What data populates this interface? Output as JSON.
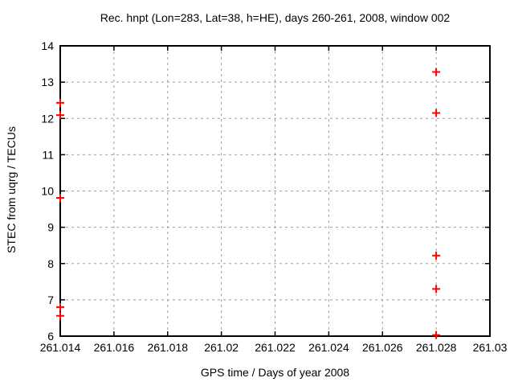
{
  "chart_data": {
    "type": "scatter",
    "title": "Rec. hnpt (Lon=283, Lat=38, h=HE), days 260-261, 2008, window 002",
    "xlabel": "GPS time / Days of year 2008",
    "ylabel": "STEC from uqrg / TECUs",
    "xlim": [
      261.014,
      261.03
    ],
    "ylim": [
      6,
      14
    ],
    "x_ticks": [
      261.014,
      261.016,
      261.018,
      261.02,
      261.022,
      261.024,
      261.026,
      261.028,
      261.03
    ],
    "x_tick_labels": [
      "261.014",
      "261.016",
      "261.018",
      "261.02",
      "261.022",
      "261.024",
      "261.026",
      "261.028",
      "261.03"
    ],
    "y_ticks": [
      6,
      7,
      8,
      9,
      10,
      11,
      12,
      13,
      14
    ],
    "y_tick_labels": [
      "6",
      "7",
      "8",
      "9",
      "10",
      "11",
      "12",
      "13",
      "14"
    ],
    "grid": true,
    "legend": "none",
    "marker": "plus",
    "marker_color": "#ff0000",
    "grid_color": "#9e9e9e",
    "axis_color": "#000000",
    "series": [
      {
        "name": "STEC from uqrg",
        "points": [
          [
            261.014,
            12.43
          ],
          [
            261.014,
            12.09
          ],
          [
            261.014,
            9.81
          ],
          [
            261.014,
            6.8
          ],
          [
            261.014,
            6.56
          ],
          [
            261.028,
            13.28
          ],
          [
            261.028,
            12.15
          ],
          [
            261.028,
            8.22
          ],
          [
            261.028,
            7.3
          ],
          [
            261.028,
            6.03
          ]
        ]
      }
    ]
  }
}
